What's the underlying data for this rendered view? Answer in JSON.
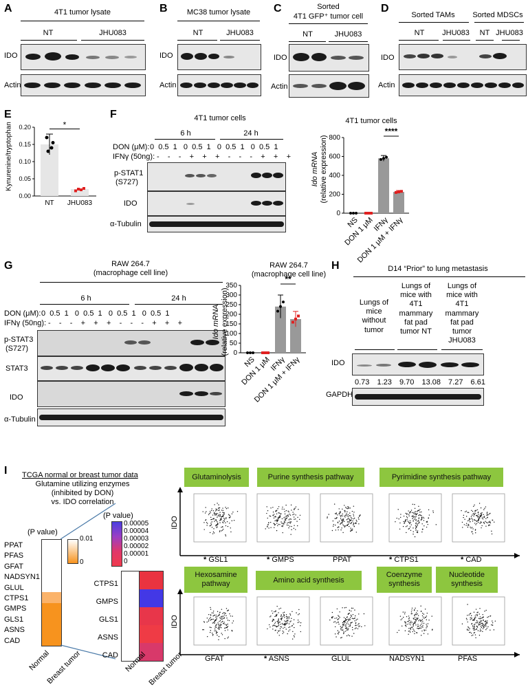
{
  "panels": {
    "A": {
      "letter": "A",
      "title": "4T1 tumor lysate",
      "groups": [
        "NT",
        "JHU083"
      ],
      "rows": [
        "IDO",
        "Actin"
      ]
    },
    "B": {
      "letter": "B",
      "title": "MC38 tumor lysate",
      "groups": [
        "NT",
        "JHU083"
      ],
      "rows": [
        "IDO",
        "Actin"
      ]
    },
    "C": {
      "letter": "C",
      "title_line1": "Sorted",
      "title_line2": "4T1 GFP⁺ tumor cell",
      "groups": [
        "NT",
        "JHU083"
      ],
      "rows": [
        "IDO",
        "Actin"
      ]
    },
    "D": {
      "letter": "D",
      "title1": "Sorted TAMs",
      "title2": "Sorted MDSCs",
      "groups": [
        "NT",
        "JHU083",
        "NT",
        "JHU083"
      ],
      "rows": [
        "IDO",
        "Actin"
      ]
    },
    "E": {
      "letter": "E",
      "ylabel": "Kynurenine/tryptophan",
      "ticks": [
        "0.20",
        "0.15",
        "0.10",
        "0.05",
        "0.00"
      ],
      "sig": "*"
    },
    "F": {
      "letter": "F",
      "title": "4T1 tumor cells",
      "time1": "6 h",
      "time2": "24 h",
      "don_label": "DON (μM):",
      "don_values": "0  0.5  1   0  0.5  1   0  0.5  1   0  0.5  1",
      "ifn_label": "IFNγ (50ng):",
      "ifn_values": "-    -    -    +    +    +    -    -    -    +    +    +",
      "rows": [
        "p-STAT1",
        "(S727)",
        "IDO",
        "α-Tubulin"
      ],
      "chart_title": "4T1 tumor cells",
      "ylabel": "Ido mRNA",
      "ylabel2": "(relative expression)",
      "sig": "****"
    },
    "G": {
      "letter": "G",
      "title1": "RAW 264.7",
      "title2": "(macrophage cell line)",
      "time1": "6 h",
      "time2": "24 h",
      "don_label": "DON (μM):",
      "don_values": "0  0.5  1   0  0.5  1   0  0.5  1   0  0.5  1",
      "ifn_label": "IFNγ (50ng):",
      "ifn_values": "-    -    -    +    +    +    -    -    -    +    +    +",
      "rows": [
        "p-STAT3",
        "(S727)",
        "STAT3",
        "IDO",
        "α-Tubulin"
      ],
      "chart_title1": "RAW 264.7",
      "chart_title2": "(macrophage cell line)",
      "ylabel": "Ido mRNA",
      "ylabel2": "(relative expression)",
      "sig": "**"
    },
    "H": {
      "letter": "H",
      "title": "D14  “Prior” to lung metastasis",
      "col1": "Lungs of mice without tumor",
      "col2": "Lungs of mice with 4T1 mammary fat pad tumor NT",
      "col3": "Lungs of mice with 4T1 mammary fat pad tumor JHU083",
      "rows": [
        "IDO",
        "GAPDH"
      ],
      "values": [
        "0.73",
        "1.23",
        "9.70",
        "13.08",
        "7.27",
        "6.61"
      ]
    },
    "I": {
      "letter": "I",
      "title": "TCGA normal or breast tumor data",
      "subtitle1": "Glutamine utilizing enzymes",
      "subtitle2": "(inhibited by DON)",
      "subtitle3": "vs. IDO correlation",
      "pval_label": "(P value)",
      "left_genes": [
        "PPAT",
        "PFAS",
        "GFAT",
        "NADSYN1",
        "GLUL",
        "CTPS1",
        "GMPS",
        "GLS1",
        "ASNS",
        "CAD"
      ],
      "left_scale": [
        "0.01",
        "0"
      ],
      "right_scale": [
        "0.00005",
        "0.00004",
        "0.00003",
        "0.00002",
        "0.00001",
        "0"
      ],
      "right_genes": [
        "CTPS1",
        "GMPS",
        "GLS1",
        "ASNS",
        "CAD"
      ],
      "xcats": [
        "Normal",
        "Breast tumor"
      ],
      "ido": "IDO",
      "boxes_top": [
        "Glutaminolysis",
        "Purine synthesis pathway",
        "Pyrimidine synthesis pathway"
      ],
      "genes_top": [
        "GSL1",
        "GMPS",
        "PPAT",
        "CTPS1",
        "CAD"
      ],
      "boxes_bottom": [
        "Hexosamine pathway",
        "Amino acid synthesis",
        "Coenzyme synthesis",
        "Nucleotide synthesis"
      ],
      "genes_bottom": [
        "GFAT",
        "ASNS",
        "GLUL",
        "NADSYN1",
        "PFAS"
      ],
      "star": "*"
    }
  },
  "chart_data": [
    {
      "type": "bar",
      "title": "",
      "categories": [
        "NT",
        "JHU083"
      ],
      "values": [
        0.15,
        0.02
      ],
      "ylabel": "Kynurenine/tryptophan",
      "ylim": [
        0,
        0.2
      ]
    },
    {
      "type": "bar",
      "title": "4T1 tumor cells",
      "categories": [
        "NS",
        "DON 1 μM",
        "IFNγ",
        "DON 1 μM + IFNγ"
      ],
      "values": [
        0,
        0,
        580,
        225
      ],
      "ylabel": "Ido mRNA (relative expression)",
      "ylim": [
        0,
        800
      ],
      "yticks": [
        "0",
        "200",
        "400",
        "600",
        "800"
      ]
    },
    {
      "type": "bar",
      "title": "RAW 264.7 (macrophage cell line)",
      "categories": [
        "NS",
        "DON 1 μM",
        "IFNγ",
        "DON 1 μM + IFNγ"
      ],
      "values": [
        0,
        0,
        240,
        175
      ],
      "ylabel": "Ido mRNA (relative expression)",
      "ylim": [
        0,
        350
      ],
      "yticks": [
        "0",
        "50",
        "100",
        "150",
        "200",
        "250",
        "300",
        "350"
      ]
    }
  ]
}
